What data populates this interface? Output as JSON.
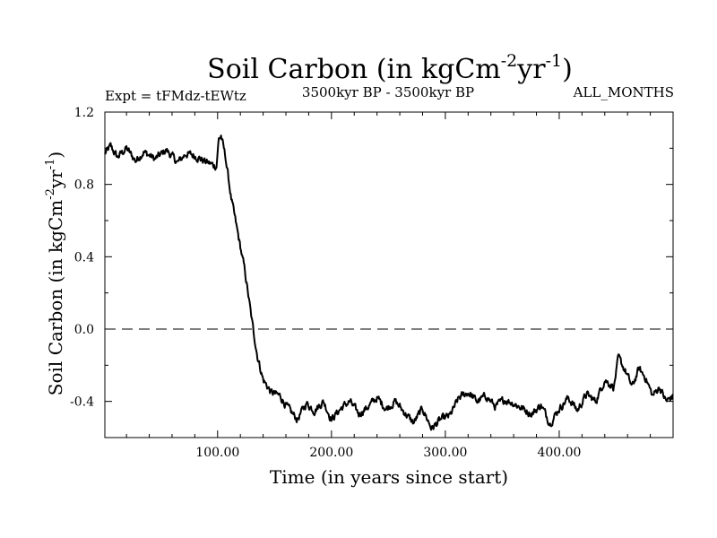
{
  "chart_data": {
    "type": "line",
    "title": "Soil Carbon (in kgCm",
    "title_sup1": "-2",
    "title_mid": "yr",
    "title_sup2": "-1",
    "title_end": ")",
    "subtitle_left": "Expt = tFMdz-tEWtz",
    "subtitle_center": "3500kyr BP - 3500kyr BP",
    "subtitle_right": "ALL_MONTHS",
    "xlabel": "Time (in years since start)",
    "ylabel_pre": "Soil Carbon (in kgCm",
    "ylabel_sup1": "-2",
    "ylabel_mid": "yr",
    "ylabel_sup2": "-1",
    "ylabel_end": ")",
    "xlim": [
      1,
      500
    ],
    "ylim": [
      -0.6,
      1.2
    ],
    "xticks": [
      100,
      200,
      300,
      400
    ],
    "xtick_labels": [
      "100.00",
      "200.00",
      "300.00",
      "400.00"
    ],
    "yticks": [
      1.2,
      0.8,
      0.4,
      0.0,
      -0.4
    ],
    "ytick_labels": [
      "1.2",
      "0.8",
      "0.4",
      "0.0",
      "-0.4"
    ],
    "reference_line": {
      "y": 0.0,
      "style": "dashed"
    },
    "series": [
      {
        "name": "Soil Carbon",
        "keypoints": [
          [
            1,
            0.97
          ],
          [
            6,
            1.01
          ],
          [
            12,
            0.95
          ],
          [
            20,
            1.0
          ],
          [
            28,
            0.93
          ],
          [
            35,
            0.98
          ],
          [
            45,
            0.94
          ],
          [
            55,
            0.99
          ],
          [
            65,
            0.92
          ],
          [
            72,
            0.97
          ],
          [
            80,
            0.96
          ],
          [
            88,
            0.93
          ],
          [
            95,
            0.91
          ],
          [
            99,
            0.9
          ],
          [
            101,
            1.05
          ],
          [
            103,
            1.07
          ],
          [
            107,
            0.95
          ],
          [
            112,
            0.72
          ],
          [
            118,
            0.52
          ],
          [
            124,
            0.32
          ],
          [
            130,
            0.05
          ],
          [
            135,
            -0.15
          ],
          [
            140,
            -0.28
          ],
          [
            147,
            -0.35
          ],
          [
            155,
            -0.37
          ],
          [
            162,
            -0.44
          ],
          [
            170,
            -0.5
          ],
          [
            178,
            -0.41
          ],
          [
            185,
            -0.45
          ],
          [
            193,
            -0.4
          ],
          [
            200,
            -0.5
          ],
          [
            208,
            -0.44
          ],
          [
            216,
            -0.4
          ],
          [
            224,
            -0.47
          ],
          [
            232,
            -0.43
          ],
          [
            240,
            -0.38
          ],
          [
            248,
            -0.44
          ],
          [
            256,
            -0.4
          ],
          [
            264,
            -0.46
          ],
          [
            272,
            -0.52
          ],
          [
            280,
            -0.44
          ],
          [
            288,
            -0.55
          ],
          [
            296,
            -0.5
          ],
          [
            304,
            -0.48
          ],
          [
            312,
            -0.38
          ],
          [
            320,
            -0.35
          ],
          [
            328,
            -0.4
          ],
          [
            336,
            -0.37
          ],
          [
            344,
            -0.43
          ],
          [
            352,
            -0.39
          ],
          [
            360,
            -0.41
          ],
          [
            368,
            -0.44
          ],
          [
            376,
            -0.47
          ],
          [
            384,
            -0.42
          ],
          [
            392,
            -0.52
          ],
          [
            400,
            -0.44
          ],
          [
            408,
            -0.38
          ],
          [
            416,
            -0.45
          ],
          [
            424,
            -0.36
          ],
          [
            432,
            -0.4
          ],
          [
            440,
            -0.28
          ],
          [
            448,
            -0.32
          ],
          [
            452,
            -0.16
          ],
          [
            458,
            -0.23
          ],
          [
            464,
            -0.32
          ],
          [
            470,
            -0.22
          ],
          [
            476,
            -0.27
          ],
          [
            482,
            -0.37
          ],
          [
            488,
            -0.32
          ],
          [
            494,
            -0.4
          ],
          [
            500,
            -0.37
          ]
        ]
      }
    ]
  }
}
